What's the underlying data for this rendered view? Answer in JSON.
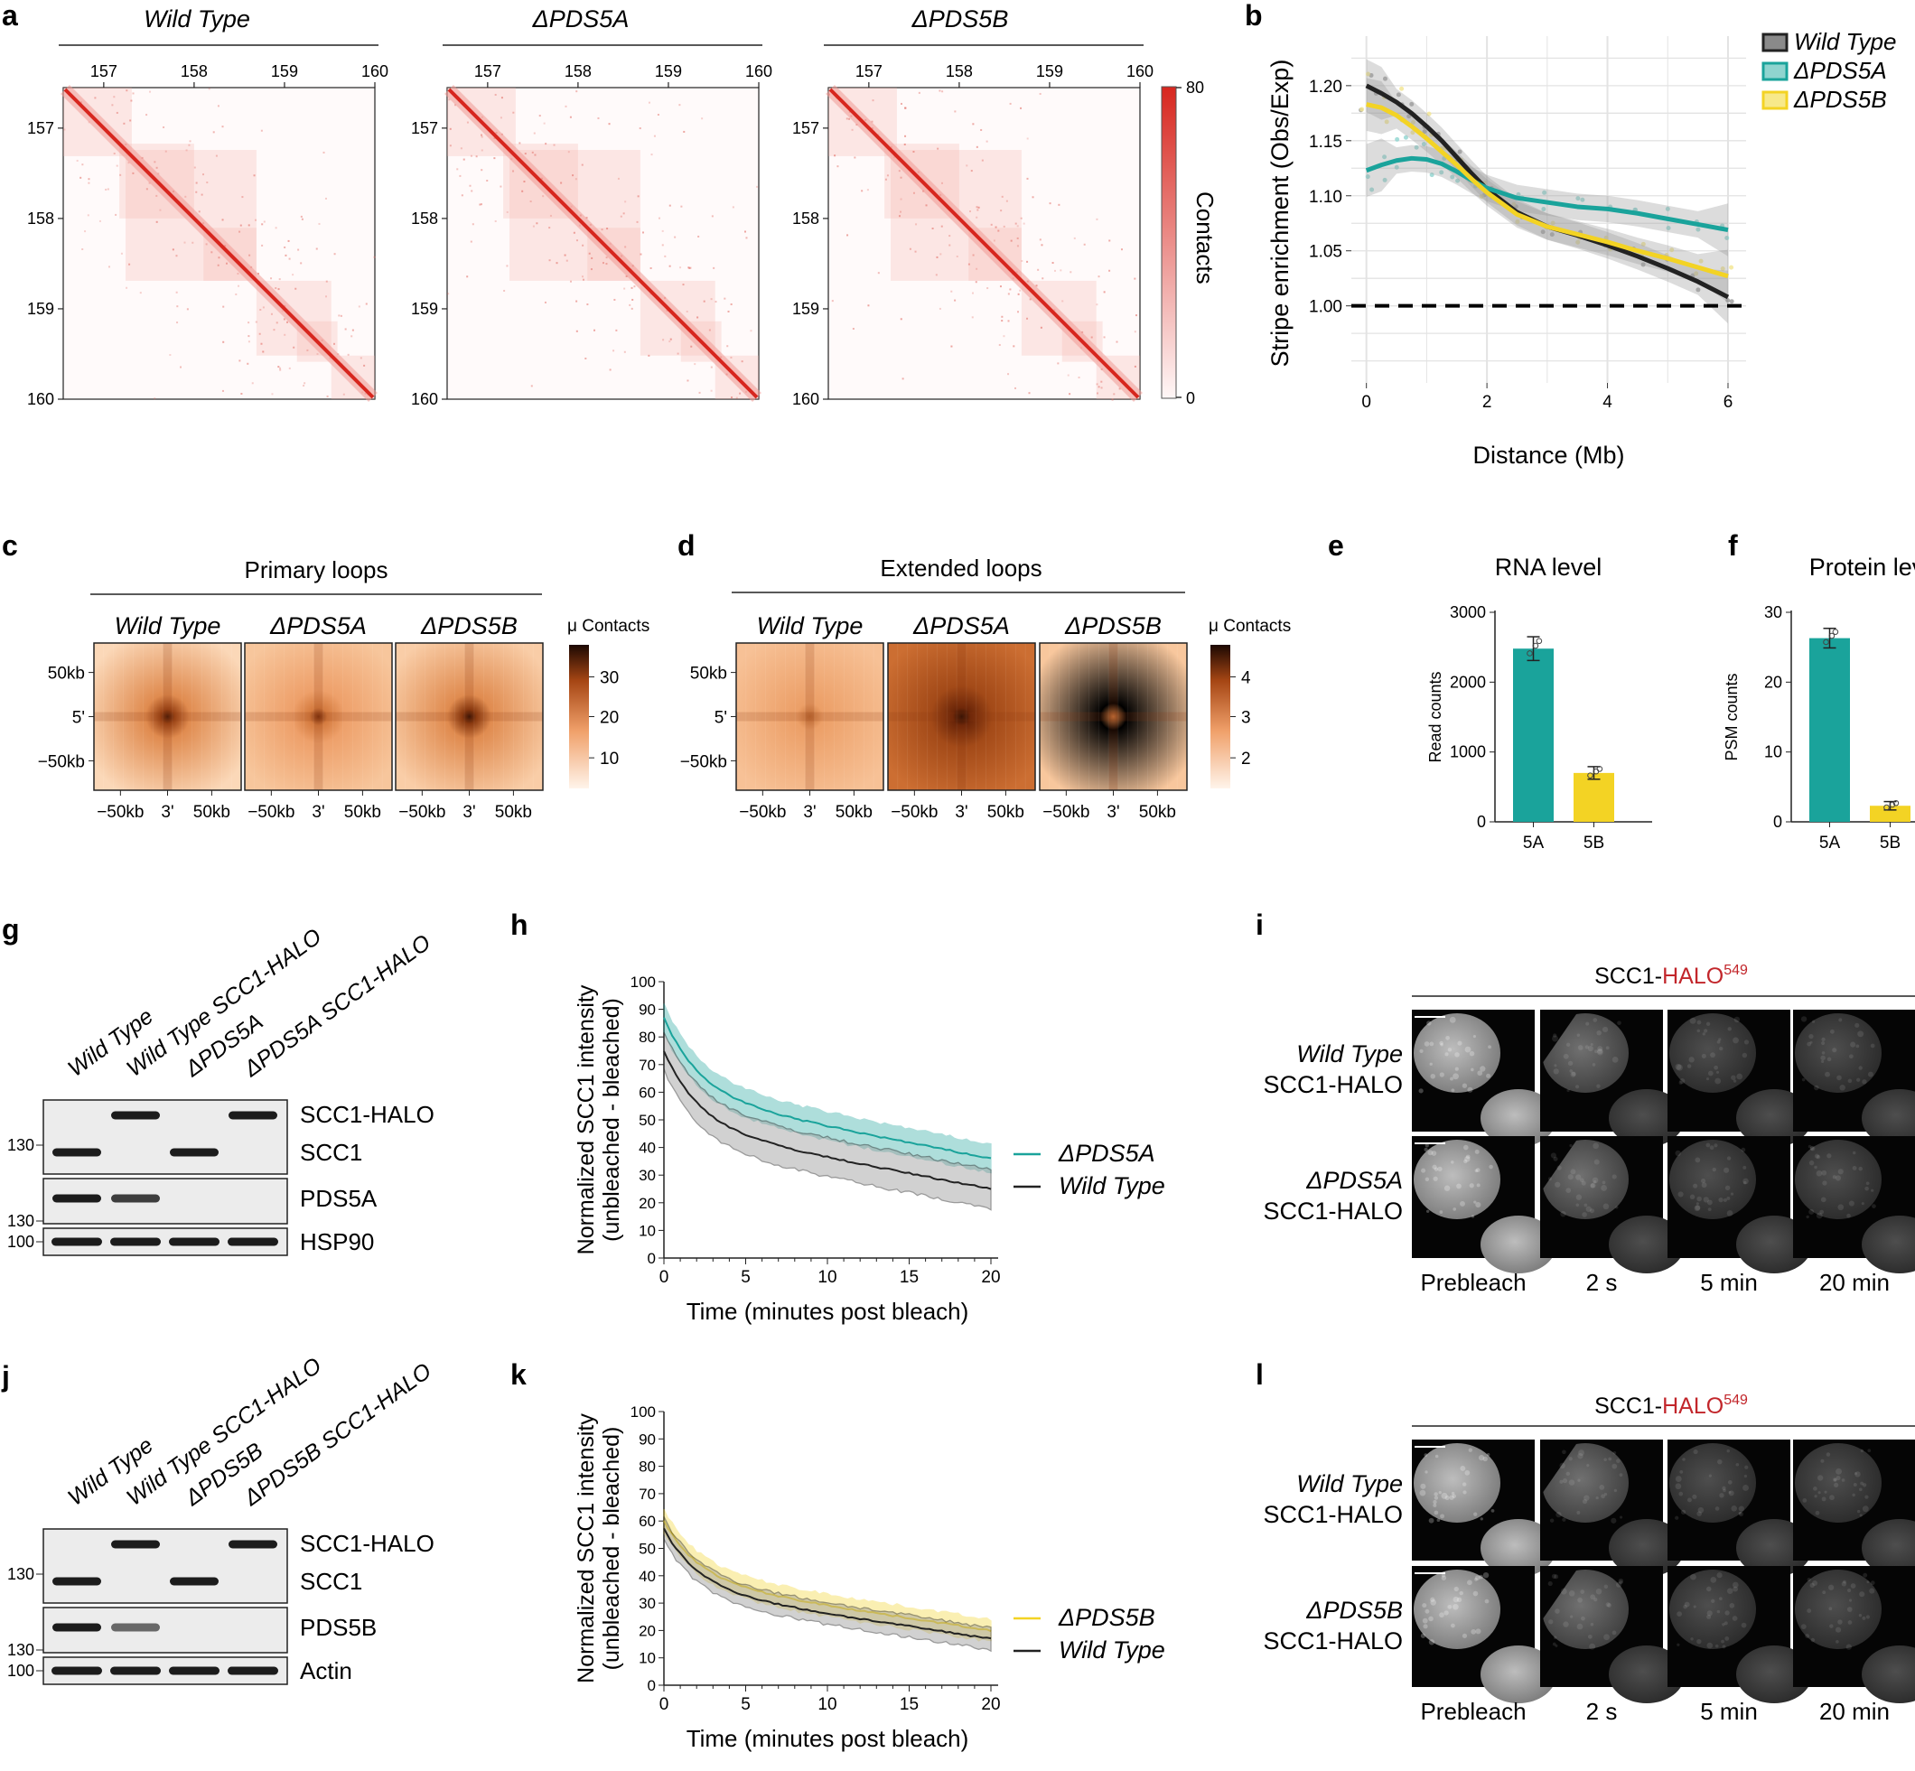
{
  "panel_letters": {
    "a": "a",
    "b": "b",
    "c": "c",
    "d": "d",
    "e": "e",
    "f": "f",
    "g": "g",
    "h": "h",
    "i": "i",
    "j": "j",
    "k": "k",
    "l": "l"
  },
  "colors": {
    "wt": "#222222",
    "pds5a": "#1aa39b",
    "pds5b": "#f3d324",
    "heat": "#d7261e",
    "apa_dark": "#2a0e04",
    "apa_light": "#fde6d3"
  },
  "panel_a": {
    "titles": [
      "Wild Type",
      "ΔPDS5A",
      "ΔPDS5B"
    ],
    "ticks": [
      "157",
      "158",
      "159",
      "160"
    ],
    "colorbar": {
      "label": "Contacts",
      "max": "80",
      "min": "0"
    }
  },
  "chart_data": [
    {
      "id": "b",
      "type": "line",
      "xlabel": "Distance (Mb)",
      "ylabel": "Stripe enrichment (Obs/Exp)",
      "xlim": [
        -0.25,
        6.3
      ],
      "ylim": [
        0.93,
        1.245
      ],
      "xticks": [
        "0",
        "2",
        "4",
        "6"
      ],
      "yticks": [
        "1.00",
        "1.05",
        "1.10",
        "1.15",
        "1.20"
      ],
      "legend": [
        "Wild Type",
        "ΔPDS5A",
        "ΔPDS5B"
      ],
      "reference_line": 1.0,
      "series": [
        {
          "name": "Wild Type",
          "color": "#222222",
          "x": [
            0,
            0.25,
            0.5,
            0.75,
            1,
            1.25,
            1.5,
            1.75,
            2,
            2.5,
            3,
            3.5,
            4,
            4.5,
            5,
            5.5,
            6
          ],
          "y": [
            1.2,
            1.193,
            1.185,
            1.175,
            1.163,
            1.15,
            1.135,
            1.12,
            1.106,
            1.085,
            1.072,
            1.064,
            1.055,
            1.045,
            1.034,
            1.022,
            1.008
          ]
        },
        {
          "name": "ΔPDS5A",
          "color": "#1aa39b",
          "x": [
            0,
            0.25,
            0.5,
            0.75,
            1,
            1.25,
            1.5,
            1.75,
            2,
            2.5,
            3,
            3.5,
            4,
            4.5,
            5,
            5.5,
            6
          ],
          "y": [
            1.123,
            1.128,
            1.132,
            1.134,
            1.133,
            1.129,
            1.122,
            1.114,
            1.107,
            1.098,
            1.094,
            1.09,
            1.088,
            1.084,
            1.079,
            1.074,
            1.069
          ]
        },
        {
          "name": "ΔPDS5B",
          "color": "#f3d324",
          "x": [
            0,
            0.25,
            0.5,
            0.75,
            1,
            1.25,
            1.5,
            1.75,
            2,
            2.5,
            3,
            3.5,
            4,
            4.5,
            5,
            5.5,
            6
          ],
          "y": [
            1.183,
            1.18,
            1.173,
            1.163,
            1.152,
            1.14,
            1.128,
            1.115,
            1.103,
            1.083,
            1.072,
            1.065,
            1.058,
            1.05,
            1.043,
            1.035,
            1.027
          ]
        }
      ]
    },
    {
      "id": "e",
      "type": "bar",
      "title": "RNA level",
      "ylabel": "Read counts",
      "categories": [
        "5A",
        "5B"
      ],
      "values": [
        2480,
        700
      ],
      "errors": [
        170,
        90
      ],
      "colors": [
        "#1aa39b",
        "#f3d324"
      ],
      "ylim": [
        0,
        3000
      ],
      "yticks": [
        "0",
        "1000",
        "2000",
        "3000"
      ]
    },
    {
      "id": "f",
      "type": "bar",
      "title": "Protein level",
      "ylabel": "PSM counts",
      "categories": [
        "5A",
        "5B"
      ],
      "values": [
        26.3,
        2.3
      ],
      "errors": [
        1.4,
        0.6
      ],
      "colors": [
        "#1aa39b",
        "#f3d324"
      ],
      "ylim": [
        0,
        30
      ],
      "yticks": [
        "0",
        "10",
        "20",
        "30"
      ]
    },
    {
      "id": "h",
      "type": "line",
      "xlabel": "Time (minutes post bleach)",
      "ylabel1": "Normalized SCC1 intensity",
      "ylabel2": "(unbleached - bleached)",
      "xlim": [
        0,
        20
      ],
      "ylim": [
        0,
        100
      ],
      "xticks": [
        "0",
        "5",
        "10",
        "15",
        "20"
      ],
      "yticks": [
        "0",
        "10",
        "20",
        "30",
        "40",
        "50",
        "60",
        "70",
        "80",
        "90",
        "100"
      ],
      "series": [
        {
          "name": "ΔPDS5A",
          "color": "#1aa39b",
          "mean0": 87,
          "meanEnd": 36,
          "bandWidth": 5
        },
        {
          "name": "Wild Type",
          "color": "#222222",
          "mean0": 75,
          "meanEnd": 25,
          "bandWidth": 7
        }
      ]
    },
    {
      "id": "k",
      "type": "line",
      "xlabel": "Time (minutes post bleach)",
      "ylabel1": "Normalized SCC1 intensity",
      "ylabel2": "(unbleached - bleached)",
      "xlim": [
        0,
        20
      ],
      "ylim": [
        0,
        100
      ],
      "xticks": [
        "0",
        "5",
        "10",
        "15",
        "20"
      ],
      "yticks": [
        "0",
        "10",
        "20",
        "30",
        "40",
        "50",
        "60",
        "70",
        "80",
        "90",
        "100"
      ],
      "series": [
        {
          "name": "ΔPDS5B",
          "color": "#f3d324",
          "mean0": 60,
          "meanEnd": 20,
          "bandWidth": 4
        },
        {
          "name": "Wild Type",
          "color": "#222222",
          "mean0": 57,
          "meanEnd": 17,
          "bandWidth": 4
        }
      ]
    }
  ],
  "panel_c": {
    "title": "Primary loops",
    "labels": [
      "Wild Type",
      "ΔPDS5A",
      "ΔPDS5B"
    ],
    "yticks": [
      "50kb",
      "5'",
      "−50kb"
    ],
    "xticks": [
      "−50kb",
      "3'",
      "50kb"
    ],
    "colorbar": {
      "label": "μ Contacts",
      "ticks": [
        "30",
        "20",
        "10"
      ]
    }
  },
  "panel_d": {
    "title": "Extended loops",
    "labels": [
      "Wild Type",
      "ΔPDS5A",
      "ΔPDS5B"
    ],
    "yticks": [
      "50kb",
      "5'",
      "−50kb"
    ],
    "xticks": [
      "−50kb",
      "3'",
      "50kb"
    ],
    "colorbar": {
      "label": "μ Contacts",
      "ticks": [
        "4",
        "3",
        "2"
      ]
    }
  },
  "panel_g": {
    "lanes": [
      "Wild Type",
      "Wild Type SCC1-HALO",
      "ΔPDS5A",
      "ΔPDS5A SCC1-HALO"
    ],
    "bands": [
      "SCC1-HALO",
      "SCC1",
      "PDS5A",
      "HSP90"
    ],
    "markers": [
      "130",
      "130",
      "100"
    ]
  },
  "panel_j": {
    "lanes": [
      "Wild Type",
      "Wild Type SCC1-HALO",
      "ΔPDS5B",
      "ΔPDS5B SCC1-HALO"
    ],
    "bands": [
      "SCC1-HALO",
      "SCC1",
      "PDS5B",
      "Actin"
    ],
    "markers": [
      "130",
      "130",
      "100"
    ]
  },
  "panel_i": {
    "header_prefix": "SCC1-",
    "header_tag": "HALO",
    "header_sup": "549",
    "rows": [
      {
        "l1": "Wild Type",
        "l2": "SCC1-HALO"
      },
      {
        "l1": "ΔPDS5A",
        "l2": "SCC1-HALO"
      }
    ],
    "cols": [
      "Prebleach",
      "2 s",
      "5 min",
      "20 min"
    ]
  },
  "panel_l": {
    "header_prefix": "SCC1-",
    "header_tag": "HALO",
    "header_sup": "549",
    "rows": [
      {
        "l1": "Wild Type",
        "l2": "SCC1-HALO"
      },
      {
        "l1": "ΔPDS5B",
        "l2": "SCC1-HALO"
      }
    ],
    "cols": [
      "Prebleach",
      "2 s",
      "5 min",
      "20 min"
    ]
  }
}
